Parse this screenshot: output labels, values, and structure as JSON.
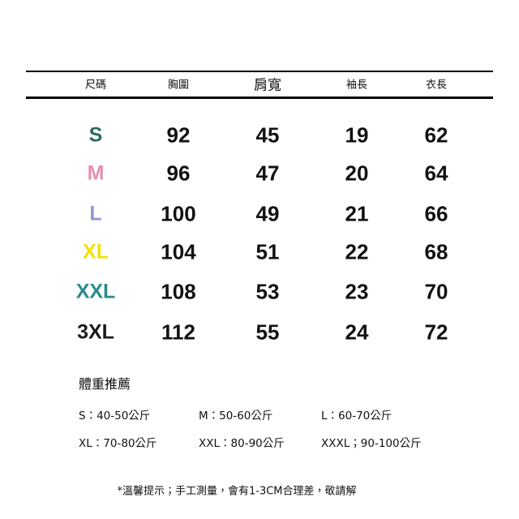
{
  "table": {
    "header": [
      "尺碼",
      "胸圍",
      "肩寬",
      "袖長",
      "衣長"
    ],
    "rows": [
      [
        "S",
        "92",
        "45",
        "19",
        "62"
      ],
      [
        "M",
        "96",
        "47",
        "20",
        "64"
      ],
      [
        "L",
        "100",
        "49",
        "21",
        "66"
      ],
      [
        "XL",
        "104",
        "51",
        "22",
        "68"
      ],
      [
        "XXL",
        "108",
        "53",
        "23",
        "70"
      ],
      [
        "3XL",
        "112",
        "55",
        "24",
        "72"
      ]
    ]
  },
  "weight": {
    "title": "體重推薦",
    "items": [
      [
        "S：40-50公斤",
        "M：50-60公斤",
        "L：60-70公斤"
      ],
      [
        "XL：70-80公斤",
        "XXL：80-90公斤",
        "XXXL；90-100公斤"
      ]
    ]
  },
  "note": "*溫馨提示；手工測量，會有1-3CM合理差，敬請解"
}
